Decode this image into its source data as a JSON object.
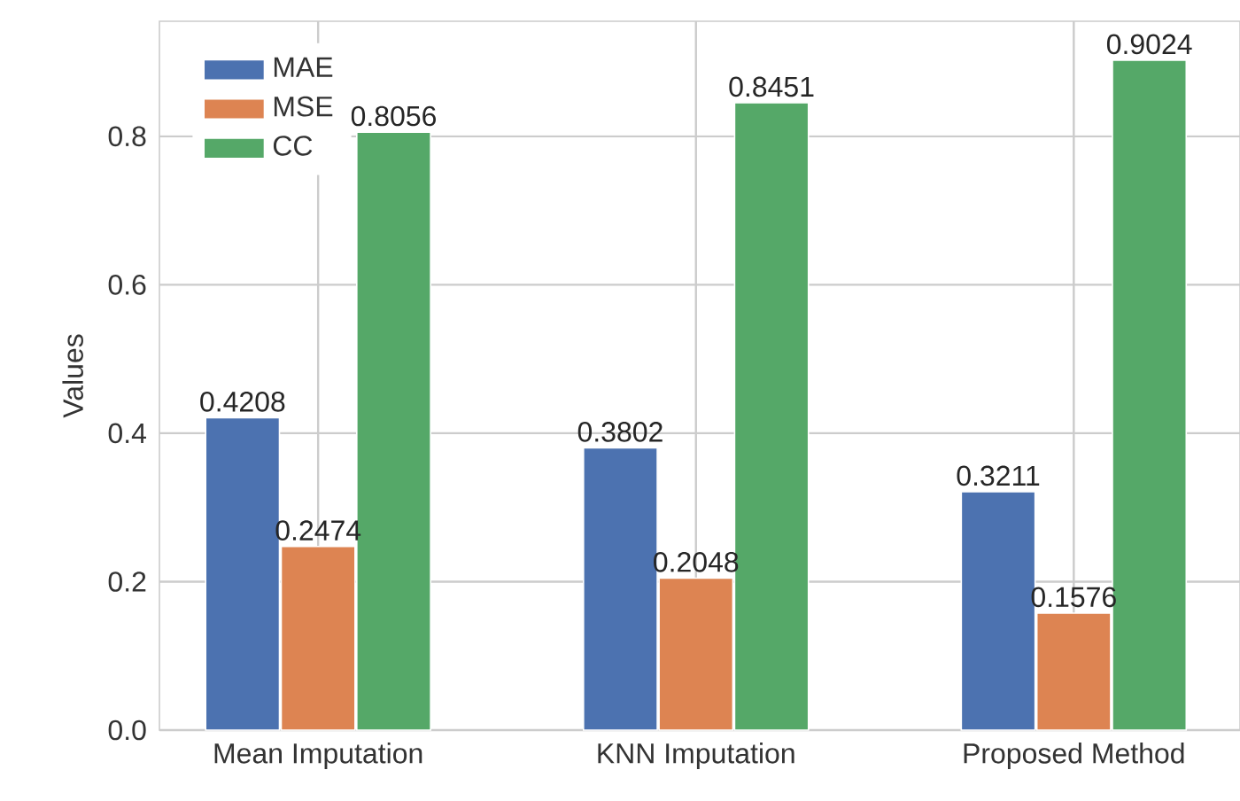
{
  "chart_data": {
    "type": "bar",
    "ylabel": "Values",
    "categories": [
      "Mean Imputation",
      "KNN Imputation",
      "Proposed Method"
    ],
    "series": [
      {
        "name": "MAE",
        "color": "#4c72b0",
        "values": [
          0.4208,
          0.3802,
          0.3211
        ]
      },
      {
        "name": "MSE",
        "color": "#dd8452",
        "values": [
          0.2474,
          0.2048,
          0.1576
        ]
      },
      {
        "name": "CC",
        "color": "#55a868",
        "values": [
          0.8056,
          0.8451,
          0.9024
        ]
      }
    ],
    "ylim": [
      0,
      0.955
    ],
    "yticks": [
      {
        "value": 0,
        "label": "0.0"
      },
      {
        "value": 0.2,
        "label": "0.2"
      },
      {
        "value": 0.4,
        "label": "0.4"
      },
      {
        "value": 0.6,
        "label": "0.6"
      },
      {
        "value": 0.8,
        "label": "0.8"
      }
    ],
    "data_labels": true,
    "grid": true,
    "legend": "top left"
  }
}
